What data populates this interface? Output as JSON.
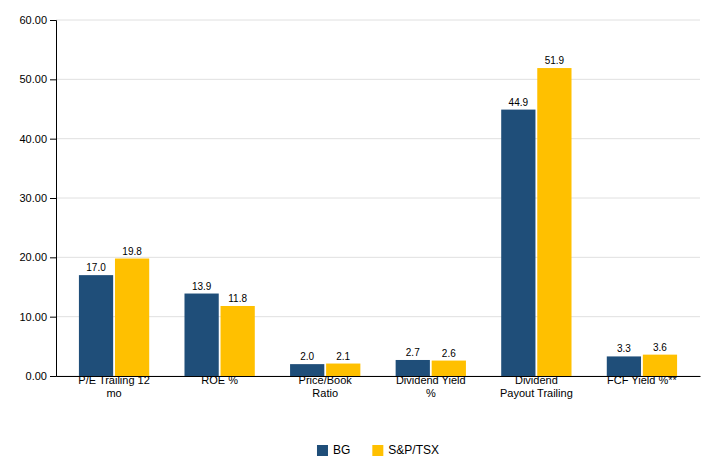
{
  "chart_data": {
    "type": "bar",
    "categories": [
      "P/E Trailing 12\nmo",
      "ROE %",
      "Price/Book\nRatio",
      "Dividend Yield\n%",
      "Dividend\nPayout Trailing",
      "FCF Yield %**"
    ],
    "series": [
      {
        "name": "BG",
        "color": "#1F4E79",
        "values": [
          17.0,
          13.9,
          2.0,
          2.7,
          44.9,
          3.3
        ],
        "value_labels": [
          "17.0",
          "13.9",
          "2.0",
          "2.7",
          "44.9",
          "3.3"
        ]
      },
      {
        "name": "S&P/TSX",
        "color": "#FFC000",
        "values": [
          19.8,
          11.8,
          2.1,
          2.6,
          51.9,
          3.6
        ],
        "value_labels": [
          "19.8",
          "11.8",
          "2.1",
          "2.6",
          "51.9",
          "3.6"
        ]
      }
    ],
    "ylim": [
      0,
      60
    ],
    "yticks": [
      {
        "value": 0,
        "label": "0.00"
      },
      {
        "value": 10,
        "label": "10.00"
      },
      {
        "value": 20,
        "label": "20.00"
      },
      {
        "value": 30,
        "label": "30.00"
      },
      {
        "value": 40,
        "label": "40.00"
      },
      {
        "value": 50,
        "label": "50.00"
      },
      {
        "value": 60,
        "label": "60.00"
      }
    ],
    "grid": true,
    "legend": "bottom",
    "data_labels": true
  }
}
